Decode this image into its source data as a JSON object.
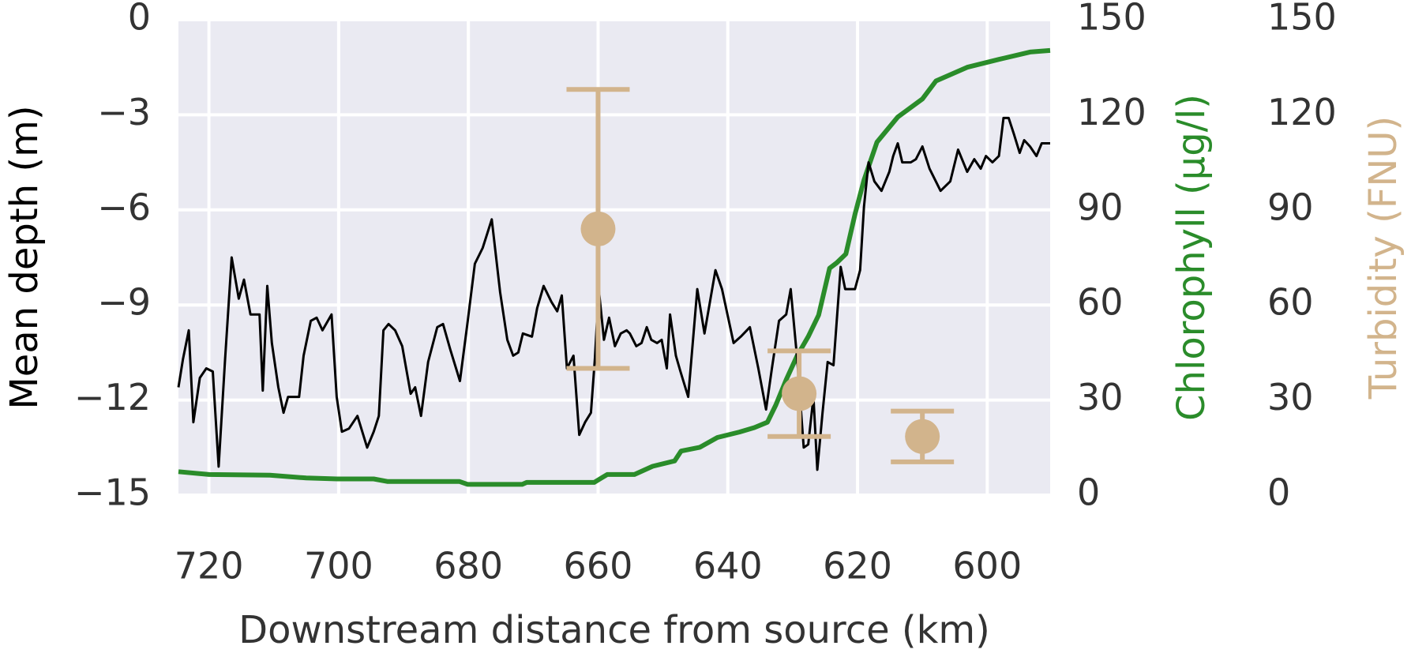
{
  "chart_data": {
    "type": "line",
    "x_label": "Downstream distance from source (km)",
    "y_label": "Mean depth (m)",
    "y2_label": "Chlorophyll (µg/l)",
    "y3_label": "Turbidity (FNU)",
    "xlim": [
      724.7,
      590.3
    ],
    "xticks": [
      720,
      700,
      680,
      660,
      640,
      620,
      600
    ],
    "ylim": [
      -15,
      0
    ],
    "yticks": [
      {
        "value": -15,
        "label": "−15"
      },
      {
        "value": -12,
        "label": "−12"
      },
      {
        "value": -9,
        "label": "−9"
      },
      {
        "value": -6,
        "label": "−6"
      },
      {
        "value": -3,
        "label": "−3"
      },
      0
    ],
    "y2lim": [
      0,
      150
    ],
    "y2ticks": [
      0,
      30,
      60,
      90,
      120,
      150
    ],
    "y3lim": [
      0,
      150
    ],
    "y3ticks": [
      0,
      30,
      60,
      90,
      120,
      150
    ],
    "grid": true,
    "series": [
      {
        "color": "#000000",
        "x": [
          724.7,
          724.0,
          723.1,
          722.4,
          721.4,
          720.4,
          719.4,
          718.5,
          717.5,
          716.5,
          715.4,
          714.6,
          713.6,
          712.2,
          711.7,
          711.0,
          710.3,
          709.3,
          708.5,
          707.8,
          706.1,
          705.4,
          704.3,
          703.4,
          702.5,
          701.1,
          700.3,
          699.5,
          698.4,
          697.1,
          695.6,
          694.6,
          693.8,
          693.1,
          692.3,
          691.3,
          690.2,
          688.9,
          688.2,
          687.3,
          686.2,
          684.8,
          683.9,
          682.8,
          681.3,
          680.1,
          679.0,
          677.8,
          676.4,
          675.1,
          674.0,
          673.1,
          672.3,
          671.6,
          670.2,
          669.4,
          668.4,
          667.2,
          666.3,
          665.6,
          664.8,
          663.8,
          662.9,
          662.0,
          661.1,
          660.5,
          659.9,
          659.1,
          658.3,
          657.4,
          656.5,
          655.6,
          655.1,
          654.1,
          653.3,
          652.5,
          651.8,
          650.9,
          650.2,
          649.4,
          648.9,
          648.0,
          647.3,
          646.1,
          644.7,
          643.6,
          641.9,
          640.9,
          639.1,
          638.0,
          636.6,
          635.3,
          634.1,
          633.2,
          632.1,
          631.0,
          630.3,
          629.3,
          628.3,
          627.6,
          626.8,
          626.2,
          625.4,
          624.6,
          623.7,
          622.6,
          621.9,
          620.4,
          619.6,
          619.0,
          618.3,
          617.4,
          616.3,
          615.1,
          614.5,
          613.8,
          613.1,
          611.8,
          611.0,
          610.0,
          608.9,
          607.2,
          605.7,
          604.5,
          603.1,
          602.0,
          601.0,
          600.2,
          599.2,
          598.2,
          597.5,
          596.7,
          595.9,
          595.0,
          594.3,
          593.4,
          592.4,
          591.6,
          590.3
        ],
        "values": [
          -11.6,
          -10.7,
          -9.8,
          -12.7,
          -11.3,
          -11.0,
          -11.1,
          -14.1,
          -10.7,
          -7.5,
          -8.8,
          -8.2,
          -9.3,
          -9.3,
          -11.7,
          -8.4,
          -10.2,
          -11.6,
          -12.4,
          -11.9,
          -11.9,
          -10.6,
          -9.5,
          -9.4,
          -9.8,
          -9.3,
          -11.9,
          -13.0,
          -12.9,
          -12.5,
          -13.5,
          -13.0,
          -12.5,
          -9.8,
          -9.6,
          -9.8,
          -10.3,
          -11.8,
          -11.6,
          -12.5,
          -10.8,
          -9.7,
          -9.6,
          -10.4,
          -11.4,
          -9.5,
          -7.7,
          -7.2,
          -6.3,
          -8.6,
          -10.1,
          -10.6,
          -10.5,
          -9.9,
          -10.0,
          -9.1,
          -8.4,
          -8.9,
          -9.2,
          -8.7,
          -11.0,
          -10.6,
          -13.1,
          -12.7,
          -12.4,
          -10.7,
          -8.5,
          -10.1,
          -9.4,
          -10.3,
          -9.9,
          -9.8,
          -9.9,
          -10.3,
          -10.2,
          -9.7,
          -10.1,
          -10.2,
          -10.1,
          -11.0,
          -9.3,
          -10.6,
          -11.1,
          -11.9,
          -8.5,
          -9.9,
          -7.9,
          -8.5,
          -10.2,
          -10.0,
          -9.7,
          -11.0,
          -12.3,
          -11.0,
          -9.5,
          -9.3,
          -8.5,
          -10.7,
          -13.5,
          -13.4,
          -11.9,
          -14.2,
          -12.4,
          -10.8,
          -10.9,
          -7.8,
          -8.5,
          -8.5,
          -7.9,
          -5.9,
          -4.5,
          -5.1,
          -5.4,
          -4.8,
          -4.3,
          -3.9,
          -4.5,
          -4.5,
          -4.4,
          -4.0,
          -4.7,
          -5.4,
          -5.1,
          -4.1,
          -4.8,
          -4.4,
          -4.7,
          -4.3,
          -4.5,
          -4.3,
          -3.1,
          -3.1,
          -3.6,
          -4.2,
          -3.8,
          -4.0,
          -4.3,
          -3.9,
          -3.9
        ]
      },
      {
        "color": "#2a8c2a",
        "axis": "y2",
        "x": [
          724.7,
          720.0,
          710.6,
          705.0,
          700.2,
          694.6,
          692.5,
          681.4,
          680.1,
          671.7,
          671.0,
          660.6,
          658.6,
          654.4,
          651.6,
          648.2,
          647.2,
          644.3,
          641.6,
          638.2,
          635.9,
          633.9,
          632.6,
          631.0,
          629.3,
          627.6,
          626.0,
          624.3,
          623.2,
          621.8,
          620.4,
          619.0,
          617.0,
          613.8,
          610.0,
          607.9,
          603.1,
          598.2,
          593.4,
          590.3
        ],
        "values": [
          7.4,
          6.5,
          6.3,
          5.4,
          5.1,
          5.1,
          4.3,
          4.3,
          3.4,
          3.4,
          4.0,
          4.0,
          6.5,
          6.5,
          9.1,
          10.8,
          13.9,
          15.1,
          18.2,
          19.9,
          21.3,
          23.0,
          28.4,
          36.4,
          44.0,
          50.0,
          56.8,
          71.6,
          73.3,
          76.1,
          88.6,
          99.4,
          111.4,
          119.3,
          125.0,
          130.7,
          135.0,
          137.5,
          139.8,
          140.3
        ]
      },
      {
        "type": "errorbar",
        "color": "#d2b48c",
        "axis": "y3",
        "x": [
          660,
          629,
          610
        ],
        "values": [
          84,
          32,
          18.5
        ],
        "errors": [
          44,
          13.5,
          8
        ]
      }
    ]
  }
}
